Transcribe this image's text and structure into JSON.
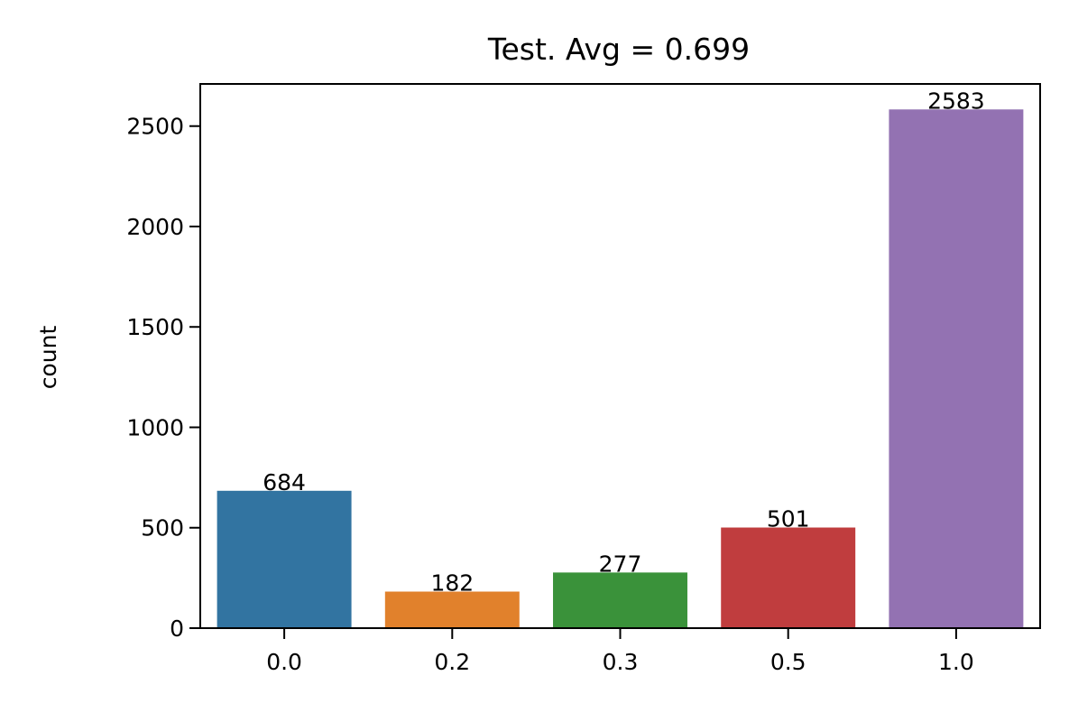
{
  "chart_data": {
    "type": "bar",
    "title": "Test. Avg = 0.699",
    "xlabel": "",
    "ylabel": "count",
    "categories": [
      "0.0",
      "0.2",
      "0.3",
      "0.5",
      "1.0"
    ],
    "values": [
      684,
      182,
      277,
      501,
      2583
    ],
    "data_labels": [
      "684",
      "182",
      "277",
      "501",
      "2583"
    ],
    "bar_colors": [
      "#3274a1",
      "#e1812c",
      "#3a923a",
      "#c03d3e",
      "#9372b2"
    ],
    "ylim": [
      0,
      2710
    ],
    "yticks": [
      0,
      500,
      1000,
      1500,
      2000,
      2500
    ],
    "ytick_labels": [
      "0",
      "500",
      "1000",
      "1500",
      "2000",
      "2500"
    ],
    "grid": false,
    "legend": "none"
  }
}
